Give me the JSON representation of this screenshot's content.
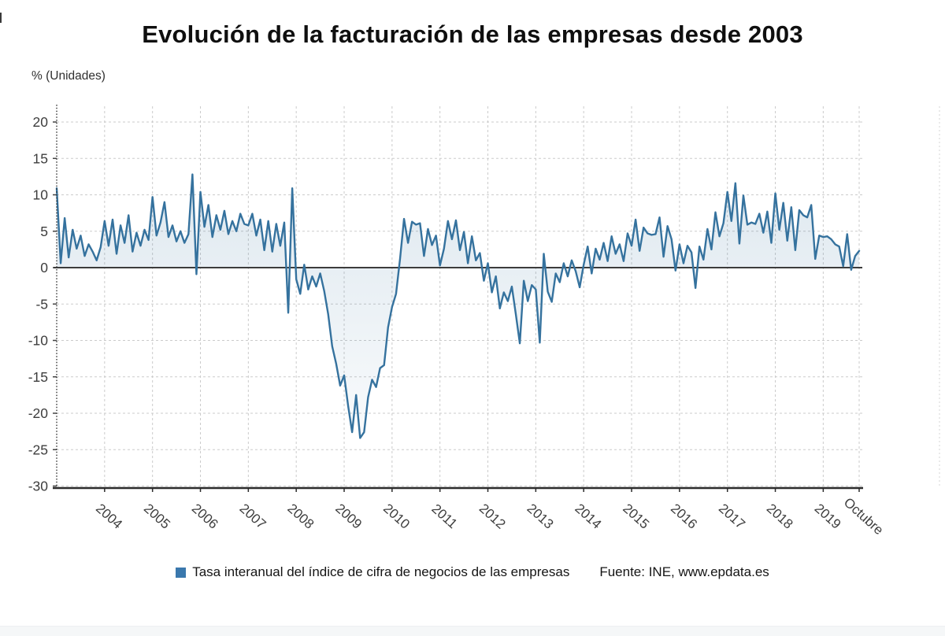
{
  "chart_data": {
    "type": "area",
    "title": "Evolución de la facturación de las empresas desde 2003",
    "ylabel": "% (Unidades)",
    "y_ticks": [
      20,
      15,
      10,
      5,
      0,
      -5,
      -10,
      -15,
      -20,
      -25,
      -30
    ],
    "ylim": [
      -31,
      22
    ],
    "x_tick_labels": [
      "2004",
      "2005",
      "2006",
      "2007",
      "2008",
      "2009",
      "2010",
      "2011",
      "2012",
      "2013",
      "2014",
      "2015",
      "2016",
      "2017",
      "2018",
      "2019",
      "Octubre"
    ],
    "x_start_year": 2003,
    "x_frequency": "monthly",
    "grid": true,
    "legend_position": "bottom",
    "legend": {
      "label": "Tasa interanual del índice de cifra de negocios de las empresas",
      "color": "#3a78ad"
    },
    "source": "Fuente: INE, www.epdata.es",
    "colors": {
      "line": "#35729e",
      "area_fill_top": "rgba(53,114,158,0.16)",
      "area_fill_bottom": "rgba(53,114,158,0.03)",
      "gridline": "#cbcbcb",
      "axis": "#2b2b2b",
      "zero_line": "#3c3c3c",
      "tick_text": "#3d3d3d"
    },
    "series": [
      {
        "name": "Tasa interanual del índice de cifra de negocios de las empresas",
        "values": [
          10.9,
          0.6,
          6.8,
          1.4,
          5.2,
          2.6,
          4.4,
          1.6,
          3.2,
          2.2,
          1.0,
          2.8,
          6.4,
          3.0,
          6.6,
          1.9,
          5.8,
          3.4,
          7.2,
          2.2,
          4.8,
          3.0,
          5.2,
          3.8,
          9.7,
          4.4,
          6.2,
          9.0,
          4.2,
          5.8,
          3.6,
          5.0,
          3.4,
          4.6,
          12.8,
          -0.9,
          10.4,
          5.6,
          8.6,
          4.2,
          7.2,
          5.2,
          7.8,
          4.6,
          6.4,
          5.0,
          7.4,
          6.0,
          5.8,
          7.4,
          4.4,
          6.6,
          2.4,
          6.4,
          2.2,
          6.0,
          3.0,
          6.2,
          -6.2,
          10.9,
          -1.6,
          -3.6,
          0.4,
          -3.0,
          -1.2,
          -2.6,
          -0.8,
          -3.2,
          -6.4,
          -10.8,
          -13.2,
          -16.2,
          -14.8,
          -19.0,
          -22.6,
          -17.5,
          -23.4,
          -22.6,
          -17.8,
          -15.4,
          -16.4,
          -13.8,
          -13.4,
          -8.2,
          -5.4,
          -3.6,
          1.2,
          6.7,
          3.4,
          6.3,
          5.9,
          6.1,
          1.6,
          5.3,
          3.1,
          4.4,
          0.3,
          2.6,
          6.4,
          3.9,
          6.5,
          2.4,
          4.9,
          0.6,
          4.3,
          1.0,
          2.0,
          -1.8,
          0.6,
          -3.4,
          -1.2,
          -5.6,
          -3.4,
          -4.6,
          -2.6,
          -6.4,
          -10.4,
          -1.8,
          -4.6,
          -2.4,
          -3.0,
          -10.3,
          1.9,
          -3.3,
          -4.7,
          -0.8,
          -2.0,
          0.6,
          -1.2,
          1.0,
          -0.5,
          -2.7,
          0.4,
          2.9,
          -0.8,
          2.6,
          1.1,
          3.4,
          0.9,
          4.3,
          1.9,
          3.2,
          0.9,
          4.7,
          3.0,
          6.6,
          2.3,
          5.5,
          4.7,
          4.5,
          4.6,
          6.9,
          1.5,
          5.7,
          3.9,
          -0.4,
          3.2,
          0.6,
          3.0,
          2.1,
          -2.8,
          2.9,
          1.1,
          5.3,
          2.5,
          7.6,
          4.3,
          6.1,
          10.4,
          6.4,
          11.6,
          3.3,
          9.9,
          5.9,
          6.2,
          6.0,
          7.4,
          4.8,
          7.7,
          3.4,
          10.2,
          5.2,
          8.9,
          3.7,
          8.3,
          2.4,
          7.9,
          7.2,
          6.9,
          8.6,
          1.2,
          4.4,
          4.2,
          4.3,
          3.9,
          3.2,
          2.9,
          0.2,
          4.6,
          -0.3,
          1.6,
          2.3
        ]
      }
    ]
  }
}
